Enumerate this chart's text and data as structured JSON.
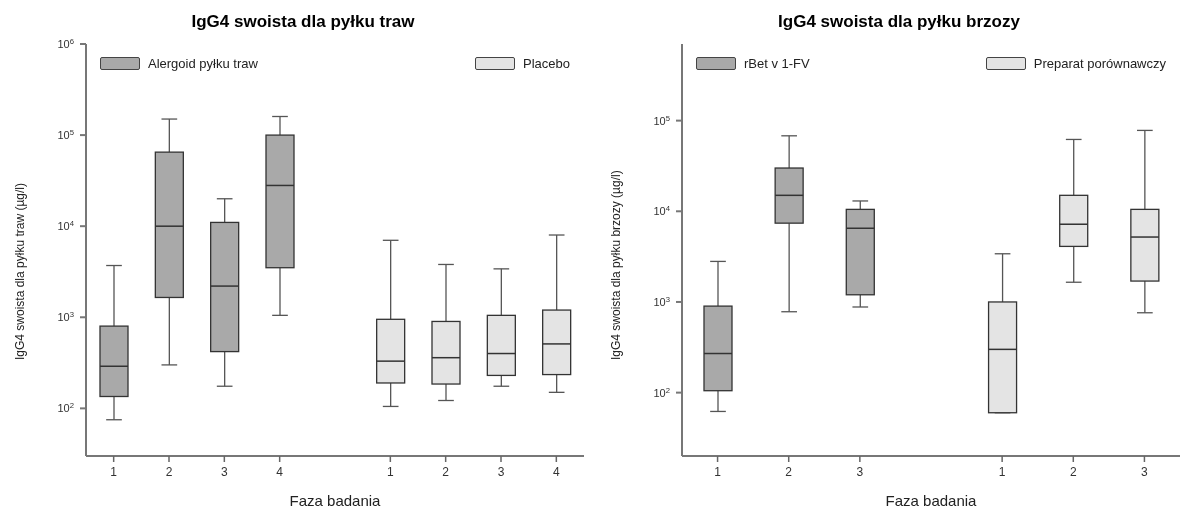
{
  "chart_data": [
    {
      "type": "box",
      "title": "IgG4 swoista dla pyłku traw",
      "xlabel": "Faza badania",
      "ylabel": "IgG4 swoista dla pyłku traw (µg/l)",
      "categories": [
        "1",
        "2",
        "3",
        "4",
        null,
        "1",
        "2",
        "3",
        "4"
      ],
      "log": true,
      "ylim": [
        30,
        1000000
      ],
      "yticks": [
        {
          "value": 100,
          "label": "10$^{2}$"
        },
        {
          "value": 1000,
          "label": "10$^{3}$"
        },
        {
          "value": 10000,
          "label": "10$^{4}$"
        },
        {
          "value": 100000,
          "label": "10$^{5}$"
        },
        {
          "value": 1000000,
          "label": "10$^{6}$"
        }
      ],
      "legend": "top",
      "series": [
        {
          "name": "Alergoid pyłku traw",
          "color": "#a9a9a9",
          "boxes": [
            {
              "low": 75,
              "q1": 135,
              "median": 290,
              "q3": 800,
              "high": 3700
            },
            {
              "low": 300,
              "q1": 1650,
              "median": 10000,
              "q3": 65000,
              "high": 150000
            },
            {
              "low": 175,
              "q1": 420,
              "median": 2200,
              "q3": 11000,
              "high": 20000
            },
            {
              "low": 1050,
              "q1": 3500,
              "median": 28000,
              "q3": 100000,
              "high": 160000
            },
            null,
            null,
            null,
            null,
            null
          ]
        },
        {
          "name": "Placebo",
          "color": "#e4e4e4",
          "boxes": [
            null,
            null,
            null,
            null,
            null,
            {
              "low": 105,
              "q1": 190,
              "median": 330,
              "q3": 950,
              "high": 7000
            },
            {
              "low": 122,
              "q1": 185,
              "median": 360,
              "q3": 900,
              "high": 3800
            },
            {
              "low": 175,
              "q1": 230,
              "median": 400,
              "q3": 1050,
              "high": 3400
            },
            {
              "low": 150,
              "q1": 235,
              "median": 510,
              "q3": 1200,
              "high": 8000
            }
          ]
        }
      ]
    },
    {
      "type": "box",
      "title": "IgG4 swoista dla pyłku brzozy",
      "xlabel": "Faza badania",
      "ylabel": "IgG4 swoista dla pyłku brzozy (µg/l)",
      "categories": [
        "1",
        "2",
        "3",
        null,
        "1",
        "2",
        "3"
      ],
      "log": true,
      "ylim": [
        20,
        700000
      ],
      "yticks": [
        {
          "value": 100,
          "label": "10$^{2}$"
        },
        {
          "value": 1000,
          "label": "10$^{3}$"
        },
        {
          "value": 10000,
          "label": "10$^{4}$"
        },
        {
          "value": 100000,
          "label": "10$^{5}$"
        }
      ],
      "legend": "top",
      "series": [
        {
          "name": "rBet v 1-FV",
          "color": "#a9a9a9",
          "boxes": [
            {
              "low": 62,
              "q1": 105,
              "median": 270,
              "q3": 900,
              "high": 2800
            },
            {
              "low": 780,
              "q1": 7400,
              "median": 15000,
              "q3": 30000,
              "high": 68000
            },
            {
              "low": 880,
              "q1": 1200,
              "median": 6500,
              "q3": 10500,
              "high": 13000
            },
            null,
            null,
            null,
            null
          ]
        },
        {
          "name": "Preparat porównawczy",
          "color": "#e4e4e4",
          "boxes": [
            null,
            null,
            null,
            null,
            {
              "low": 60,
              "q1": 60,
              "median": 300,
              "q3": 1000,
              "high": 3400
            },
            {
              "low": 1650,
              "q1": 4100,
              "median": 7200,
              "q3": 15000,
              "high": 62000
            },
            {
              "low": 760,
              "q1": 1700,
              "median": 5200,
              "q3": 10500,
              "high": 78000
            }
          ]
        }
      ]
    }
  ]
}
